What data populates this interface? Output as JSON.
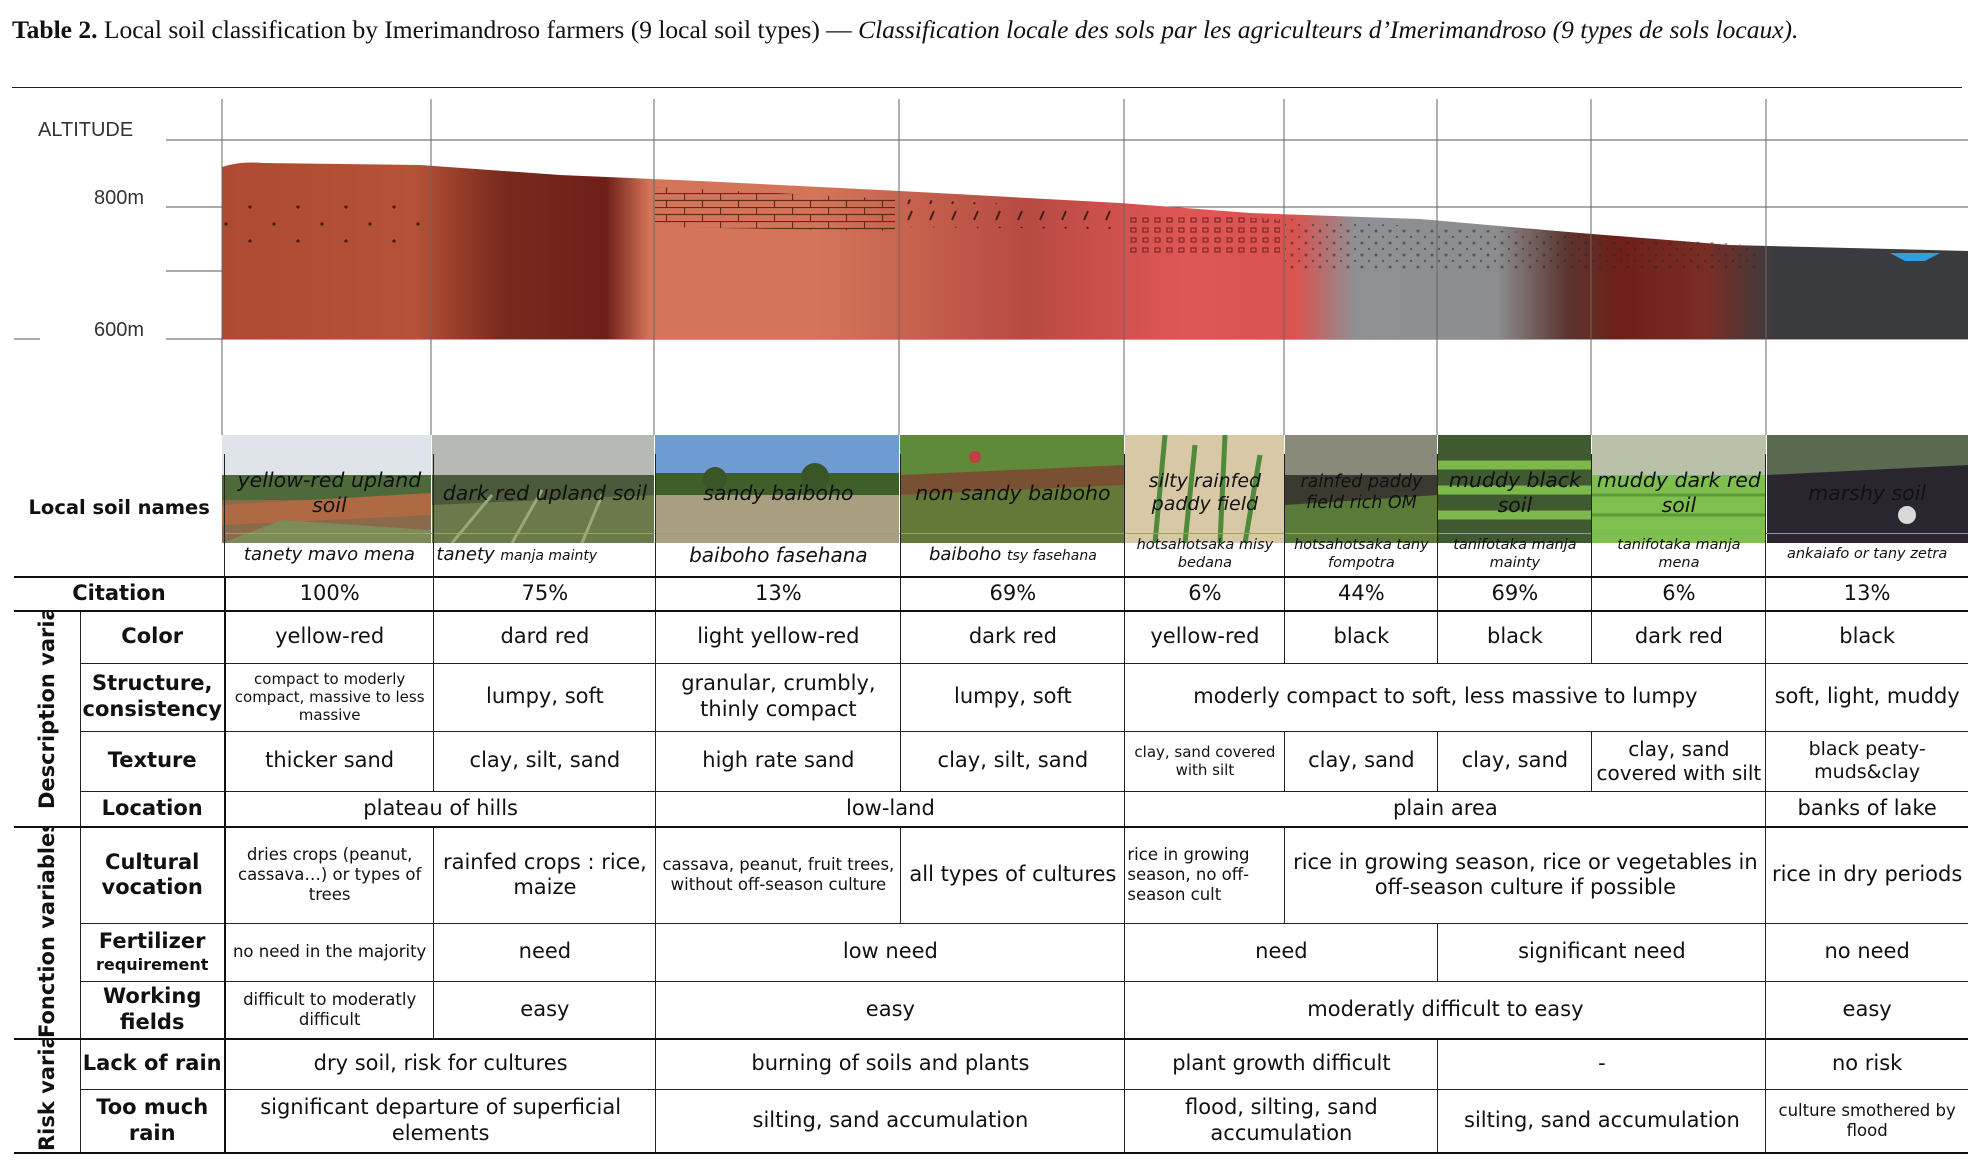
{
  "caption": {
    "label": "Table 2.",
    "title_en": "Local soil classification by Imerimandroso farmers (9 local soil types) —",
    "title_fr": "Classification locale des sols par les agriculteurs d’Imerimandroso (9 types de sols locaux)."
  },
  "profile": {
    "axis_title": "ALTITUDE",
    "ticks": [
      "800m",
      "600m"
    ],
    "colors": {
      "upland": "#b05236",
      "dark_red": "#6e1f18",
      "sandy": "#d4755a",
      "rice_red": "#d9534f",
      "grey": "#8e9194",
      "black": "#3a3b3e",
      "water": "#2f9fe0"
    }
  },
  "table": {
    "local_names_label": "Local soil names",
    "soils": [
      {
        "name": "yellow-red upland soil",
        "malagasy": "tanety mavo mena",
        "citation": "100%",
        "color": "yellow-red"
      },
      {
        "name": "dark red upland soil",
        "malagasy_main": "tanety",
        "malagasy_small": "manja mainty",
        "citation": "75%",
        "color": "dard red"
      },
      {
        "name": "sandy baiboho",
        "malagasy": "baiboho fasehana",
        "citation": "13%",
        "color": "light yellow-red"
      },
      {
        "name": "non sandy baiboho",
        "malagasy_main": "baiboho",
        "malagasy_small": "tsy fasehana",
        "citation": "69%",
        "color": "dark red"
      },
      {
        "name": "silty rainfed paddy field",
        "malagasy": "hotsahotsaka misy bedana",
        "citation": "6%",
        "color": "yellow-red"
      },
      {
        "name": "rainfed paddy field rich OM",
        "malagasy": "hotsahotsaka tany fompotra",
        "citation": "44%",
        "color": "black"
      },
      {
        "name": "muddy black soil",
        "malagasy": "tanifotaka manja mainty",
        "citation": "69%",
        "color": "black"
      },
      {
        "name": "muddy dark red soil",
        "malagasy": "tanifotaka manja mena",
        "citation": "6%",
        "color": "dark red"
      },
      {
        "name": "marshy soil",
        "malagasy": "ankaiafo or tany zetra",
        "citation": "13%",
        "color": "black"
      }
    ],
    "rows": {
      "citation": "Citation",
      "color": "Color",
      "structure": "Structure, consistency",
      "texture": "Texture",
      "location": "Location",
      "cultural": "Cultural vocation",
      "fertilizer_main": "Fertilizer",
      "fertilizer_sub": "requirement",
      "working": "Working fields",
      "lack_rain": "Lack of rain",
      "too_much_rain": "Too much rain"
    },
    "groups": {
      "description": "Description variables",
      "function": "Fonction variables",
      "risk": "Risk variables"
    },
    "structure": {
      "c1": "compact to moderly compact, massive to less massive",
      "c2": "lumpy, soft",
      "c3": "granular, crumbly, thinly compact",
      "c4": "lumpy, soft",
      "c5_8": "moderly compact to soft, less massive to lumpy",
      "c9": "soft, light, muddy"
    },
    "texture": {
      "c1": "thicker sand",
      "c2": "clay, silt, sand",
      "c3": "high rate sand",
      "c4": "clay, silt, sand",
      "c5": "clay, sand  covered with silt",
      "c6": "clay, sand",
      "c7": "clay, sand",
      "c8": "clay, sand covered with silt",
      "c9": "black peaty-muds&clay"
    },
    "location": {
      "c1_2": "plateau of hills",
      "c3_4": "low-land",
      "c5_8": "plain area",
      "c9": "banks of lake"
    },
    "cultural": {
      "c1": "dries crops (peanut, cassava…) or types of trees",
      "c2": "rainfed crops : rice, maize",
      "c3": "cassava,  peanut,  fruit trees, without off-season culture",
      "c4": "all types of cultures",
      "c5": "rice in growing season, no off-season cult",
      "c6_8": "rice in growing season, rice or vegetables in off-season culture if possible",
      "c9": "rice in dry periods"
    },
    "fertilizer": {
      "c1": "no need in the majority",
      "c2": "need",
      "c3_4": "low need",
      "c5_6": "need",
      "c7_8": "significant need",
      "c9": "no need"
    },
    "working": {
      "c1": "difficult to moderatly difficult",
      "c2": "easy",
      "c3_4": "easy",
      "c5_8": "moderatly difficult to easy",
      "c9": "easy"
    },
    "lack_rain": {
      "c1_2": "dry soil, risk for cultures",
      "c3_4": "burning of soils and plants",
      "c5_6": "plant growth difficult",
      "c7_8": "-",
      "c9": "no risk"
    },
    "too_much_rain": {
      "c1_2": "significant departure of superficial elements",
      "c3_4": "silting, sand accumulation",
      "c5_6": "flood, silting, sand accumulation",
      "c7_8": "silting, sand accumulation",
      "c9": "culture smothered by flood"
    }
  }
}
